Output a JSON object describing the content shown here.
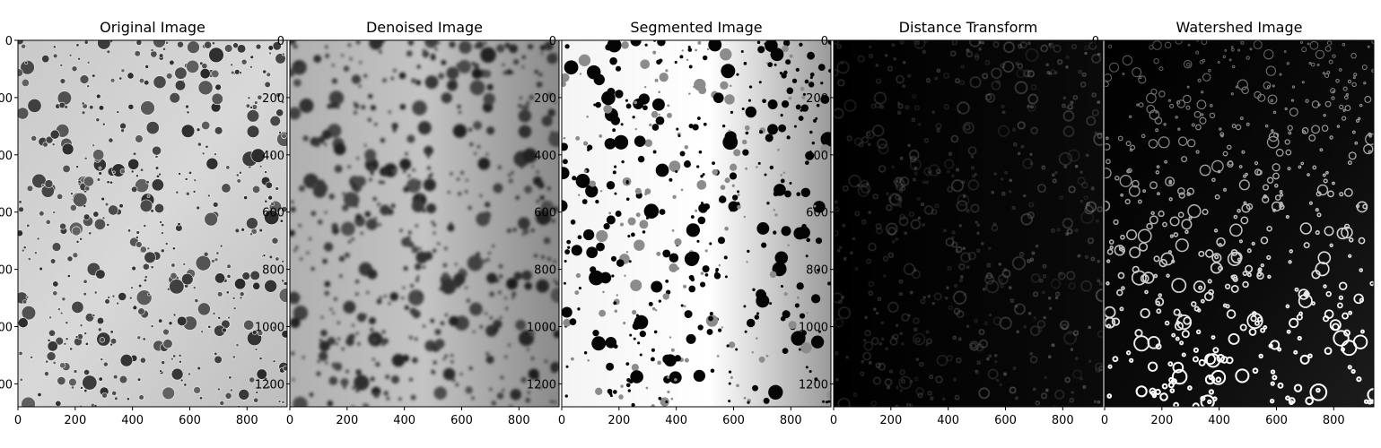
{
  "figure": {
    "panels": [
      {
        "title": "Original Image",
        "image_kind": "original",
        "x_ticks": [
          "0",
          "200",
          "400",
          "600",
          "800"
        ],
        "y_ticks": [
          "0",
          "200",
          "400",
          "600",
          "800",
          "1000",
          "1200"
        ],
        "x_range": [
          0,
          940
        ],
        "y_range": [
          0,
          1280
        ]
      },
      {
        "title": "Denoised Image",
        "image_kind": "denoised",
        "x_ticks": [
          "0",
          "200",
          "400",
          "600",
          "800"
        ],
        "y_ticks": [
          "0",
          "200",
          "400",
          "600",
          "800",
          "1000",
          "1200"
        ],
        "x_range": [
          0,
          940
        ],
        "y_range": [
          0,
          1280
        ]
      },
      {
        "title": "Segmented Image",
        "image_kind": "segmented",
        "x_ticks": [
          "0",
          "200",
          "400",
          "600",
          "800"
        ],
        "y_ticks": [
          "0",
          "200",
          "400",
          "600",
          "800",
          "1000",
          "1200"
        ],
        "x_range": [
          0,
          940
        ],
        "y_range": [
          0,
          1280
        ]
      },
      {
        "title": "Distance Transform",
        "image_kind": "distance",
        "x_ticks": [
          "0",
          "200",
          "400",
          "600",
          "800"
        ],
        "y_ticks": [
          "0",
          "200",
          "400",
          "600",
          "800",
          "1000",
          "1200"
        ],
        "x_range": [
          0,
          940
        ],
        "y_range": [
          0,
          1280
        ]
      },
      {
        "title": "Watershed Image",
        "image_kind": "watershed",
        "x_ticks": [
          "0",
          "200",
          "400",
          "600",
          "800"
        ],
        "y_ticks": [
          "0"
        ],
        "x_range": [
          0,
          940
        ],
        "y_range": [
          0,
          1280
        ]
      }
    ]
  }
}
